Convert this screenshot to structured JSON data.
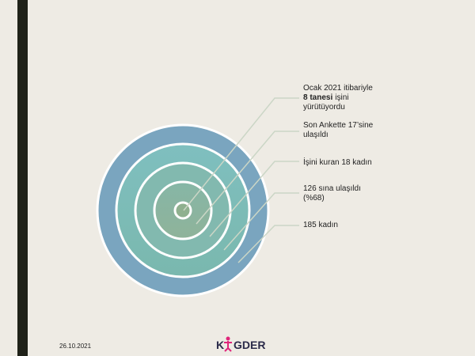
{
  "nodes": [
    {
      "line1": "Ocak 2021 itibariyle",
      "bold": "8 tanesi",
      "rest": "işini",
      "line3": "yürütüyordu"
    },
    {
      "line1": "Son Ankette 17’sine",
      "line2": "ulaşıldı"
    },
    {
      "line1": "İşini kuran 18 kadın"
    },
    {
      "line1": "126 sına ulaşıldı",
      "line2": "(%68)"
    },
    {
      "line1": "185 kadın"
    }
  ],
  "footer": {
    "date": "26.10.2021",
    "logo_left": "K",
    "logo_right": "GDER"
  }
}
